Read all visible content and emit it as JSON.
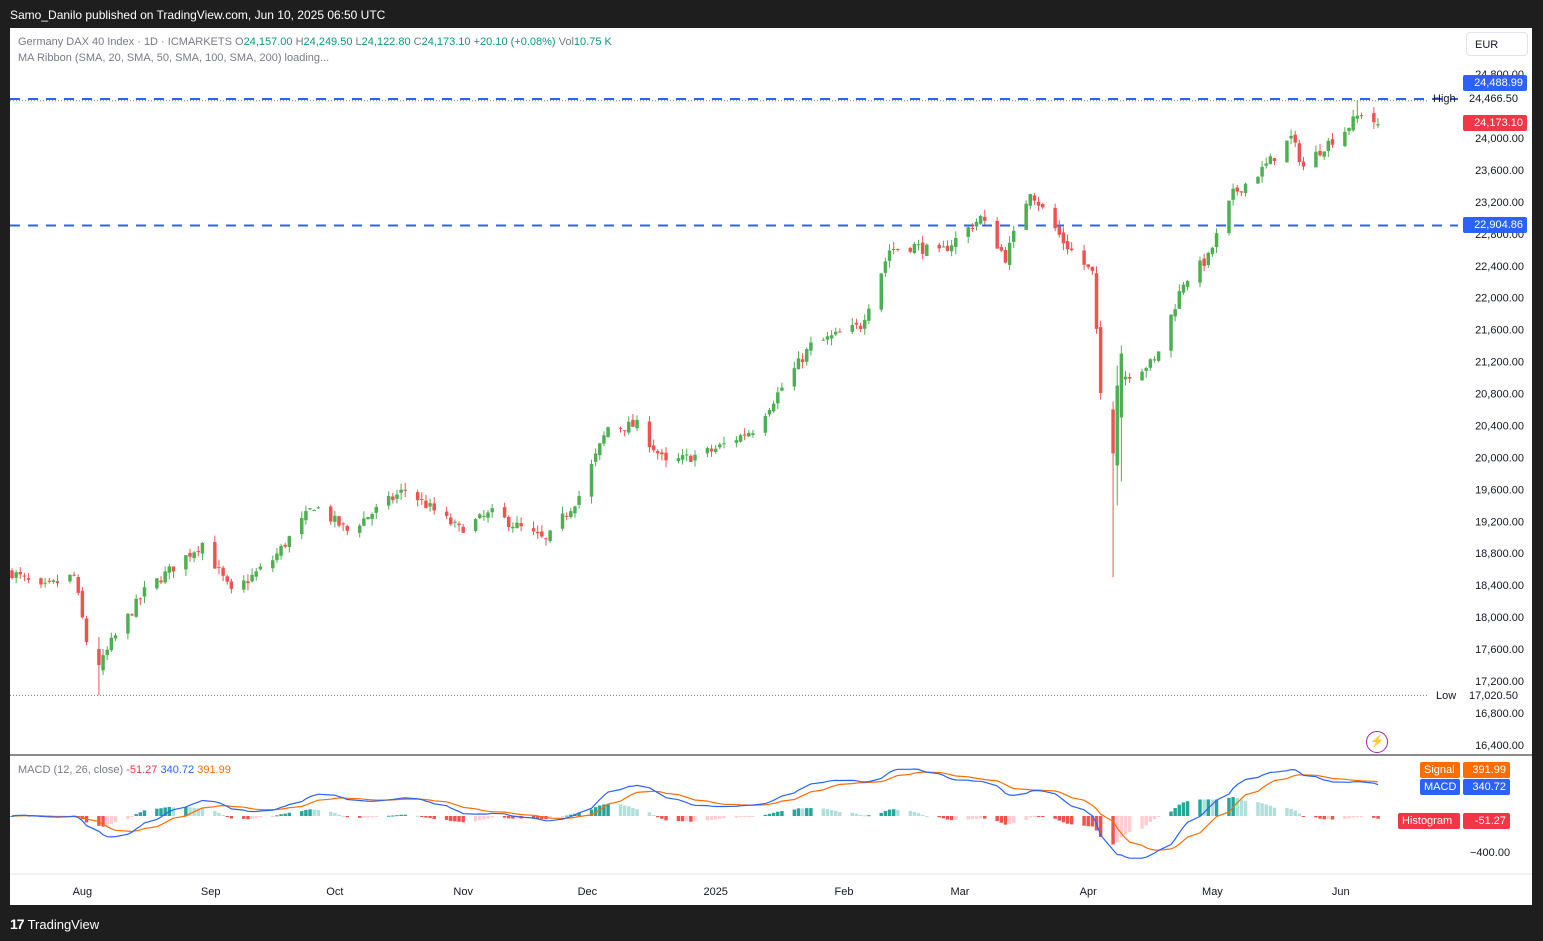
{
  "header": {
    "published": "Samo_Danilo published on TradingView.com, Jun 10, 2025 06:50 UTC"
  },
  "footer": {
    "brand_mark": "17",
    "brand": "TradingView"
  },
  "legend": {
    "symbol": "Germany DAX 40 Index · 1D · ICMARKETS",
    "o_label": "O",
    "o_val": "24,157.00",
    "h_label": "H",
    "h_val": "24,249.50",
    "l_label": "L",
    "l_val": "24,122.80",
    "c_label": "C",
    "c_val": "24,173.10",
    "change": "+20.10 (+0.08%)",
    "vol_label": "Vol",
    "vol_val": "10.75 K",
    "ma_ribbon": "MA Ribbon (SMA, 20, SMA, 50, SMA, 100, SMA, 200) loading..."
  },
  "currency": "EUR",
  "price_axis": {
    "ticks": [
      "24,800.00",
      "24,000.00",
      "23,600.00",
      "23,200.00",
      "22,800.00",
      "22,400.00",
      "22,000.00",
      "21,600.00",
      "21,200.00",
      "20,800.00",
      "20,400.00",
      "20,000.00",
      "19,600.00",
      "19,200.00",
      "18,800.00",
      "18,400.00",
      "18,000.00",
      "17,600.00",
      "17,200.00",
      "16,800.00",
      "16,400.00"
    ],
    "tick_values": [
      24800,
      24000,
      23600,
      23200,
      22800,
      22400,
      22000,
      21600,
      21200,
      20800,
      20400,
      20000,
      19600,
      19200,
      18800,
      18400,
      18000,
      17600,
      17200,
      16800,
      16400
    ]
  },
  "labels": {
    "resistance": "24,488.99",
    "high_tag": "High",
    "high_val": "24,466.50",
    "last": "24,173.10",
    "support": "22,904.86",
    "low_tag": "Low",
    "low_val": "17,020.50"
  },
  "levels": {
    "resistance": 24488.99,
    "support": 22904.86,
    "high": 24466.5,
    "low": 17020.5,
    "last": 24173.1
  },
  "macd": {
    "title": "MACD (12, 26, close)",
    "hist_val": "-51.27",
    "macd_val": "340.72",
    "signal_val": "391.99",
    "signal_tag": "Signal",
    "macd_tag": "MACD",
    "hist_tag": "Histogram",
    "axis_tick": "−400.00"
  },
  "time_axis": [
    "Aug",
    "Sep",
    "Oct",
    "Nov",
    "Dec",
    "2025",
    "Feb",
    "Mar",
    "Apr",
    "May",
    "Jun"
  ],
  "colors": {
    "up": "#26a69a",
    "up_candle": "#4caf50",
    "down": "#ef5350",
    "macd": "#2962ff",
    "signal": "#ff6d00",
    "level": "#2962ff",
    "hist_up_strong": "#26a69a",
    "hist_up_weak": "#b2dfdb",
    "hist_down_strong": "#ef5350",
    "hist_down_weak": "#ffcdd2"
  },
  "chart_data": {
    "type": "candlestick",
    "title": "Germany DAX 40 Index · 1D · ICMARKETS",
    "x_range": [
      "2024-07-15",
      "2025-06-10"
    ],
    "ylim": [
      16400,
      24800
    ],
    "anchors": [
      [
        "2024-07-15",
        18560
      ],
      [
        "2024-07-22",
        18350
      ],
      [
        "2024-07-30",
        18520
      ],
      [
        "2024-08-02",
        17700
      ],
      [
        "2024-08-05",
        17360
      ],
      [
        "2024-08-08",
        17680
      ],
      [
        "2024-08-16",
        18320
      ],
      [
        "2024-08-30",
        18930
      ],
      [
        "2024-09-06",
        18300
      ],
      [
        "2024-09-16",
        18720
      ],
      [
        "2024-09-26",
        19400
      ],
      [
        "2024-10-04",
        19080
      ],
      [
        "2024-10-18",
        19600
      ],
      [
        "2024-10-31",
        19100
      ],
      [
        "2024-11-08",
        19300
      ],
      [
        "2024-11-21",
        18950
      ],
      [
        "2024-11-29",
        19520
      ],
      [
        "2024-12-06",
        20380
      ],
      [
        "2024-12-13",
        20400
      ],
      [
        "2024-12-20",
        19920
      ],
      [
        "2024-12-31",
        20080
      ],
      [
        "2025-01-10",
        20350
      ],
      [
        "2025-01-24",
        21400
      ],
      [
        "2025-02-05",
        21650
      ],
      [
        "2025-02-12",
        22600
      ],
      [
        "2025-02-18",
        22650
      ],
      [
        "2025-02-24",
        22550
      ],
      [
        "2025-03-06",
        23000
      ],
      [
        "2025-03-12",
        22500
      ],
      [
        "2025-03-18",
        23350
      ],
      [
        "2025-03-26",
        22700
      ],
      [
        "2025-04-02",
        22300
      ],
      [
        "2025-04-04",
        20800
      ],
      [
        "2025-04-07",
        19790
      ],
      [
        "2025-04-09",
        21000
      ],
      [
        "2025-04-17",
        21200
      ],
      [
        "2025-04-24",
        22200
      ],
      [
        "2025-04-30",
        22500
      ],
      [
        "2025-05-06",
        23300
      ],
      [
        "2025-05-13",
        23600
      ],
      [
        "2025-05-20",
        24000
      ],
      [
        "2025-05-23",
        23640
      ],
      [
        "2025-05-28",
        23900
      ],
      [
        "2025-06-02",
        24100
      ],
      [
        "2025-06-06",
        24320
      ],
      [
        "2025-06-10",
        24173.1
      ]
    ],
    "last_bar": {
      "date": "2025-06-10",
      "open": 24157.0,
      "high": 24249.5,
      "low": 24122.8,
      "close": 24173.1,
      "volume": "10.75 K"
    },
    "macd_series": {
      "params": "12, 26, close",
      "last": {
        "histogram": -51.27,
        "macd": 340.72,
        "signal": 391.99
      },
      "ylim": [
        -600,
        600
      ]
    }
  }
}
